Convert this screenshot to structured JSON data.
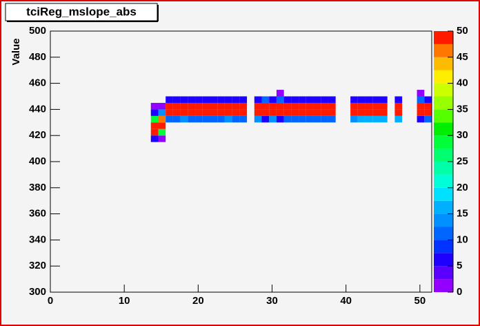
{
  "chart_data": {
    "type": "heatmap",
    "title": "tciReg_mslope_abs",
    "y_label": "Value",
    "xlim": [
      0,
      51.6
    ],
    "ylim": [
      300,
      500
    ],
    "zlim": [
      0,
      50
    ],
    "xticks": [
      0,
      10,
      20,
      30,
      40,
      50
    ],
    "yticks": [
      300,
      320,
      340,
      360,
      380,
      400,
      420,
      440,
      460,
      480,
      500
    ],
    "zticks": [
      0,
      5,
      10,
      15,
      20,
      25,
      30,
      35,
      40,
      45,
      50
    ],
    "xbins": [
      13.6,
      14.6,
      15.6,
      16.6,
      17.6,
      18.6,
      19.6,
      20.6,
      21.6,
      22.6,
      23.6,
      24.6,
      25.6,
      26.6,
      27.6,
      28.6,
      29.6,
      30.6,
      31.6,
      32.6,
      33.6,
      34.6,
      35.6,
      36.6,
      37.6,
      38.6,
      39.6,
      40.6,
      41.6,
      42.6,
      43.6,
      44.6,
      45.6,
      46.6,
      47.6,
      48.6,
      49.6,
      50.6,
      51.6
    ],
    "ybins": [
      415,
      420,
      425,
      430,
      435,
      440,
      445,
      450,
      455
    ],
    "z": [
      [
        6,
        2,
        null,
        null,
        null,
        null,
        null,
        null,
        null,
        null,
        null,
        null,
        null,
        null,
        null,
        null,
        null,
        null,
        null,
        null,
        null,
        null,
        null,
        null,
        null,
        null,
        null,
        null,
        null,
        null,
        null,
        null,
        null,
        null,
        null,
        null,
        null,
        null
      ],
      [
        48,
        28,
        null,
        null,
        null,
        null,
        null,
        null,
        null,
        null,
        null,
        null,
        null,
        null,
        null,
        null,
        null,
        null,
        null,
        null,
        null,
        null,
        null,
        null,
        null,
        null,
        null,
        null,
        null,
        null,
        null,
        null,
        null,
        null,
        null,
        null,
        null,
        null
      ],
      [
        48,
        48,
        null,
        null,
        null,
        null,
        null,
        null,
        null,
        null,
        null,
        null,
        null,
        null,
        null,
        null,
        null,
        null,
        null,
        null,
        null,
        null,
        null,
        null,
        null,
        null,
        null,
        null,
        null,
        null,
        null,
        null,
        null,
        null,
        null,
        null,
        null,
        null
      ],
      [
        29,
        45,
        10,
        10,
        13,
        11,
        11,
        11,
        11,
        11,
        13,
        11,
        11,
        null,
        14,
        6,
        14,
        6,
        12,
        12,
        12,
        12,
        12,
        12,
        12,
        null,
        null,
        13,
        15,
        15,
        15,
        15,
        null,
        17,
        null,
        null,
        6,
        12
      ],
      [
        7,
        14,
        49,
        49,
        49,
        49,
        49,
        49,
        49,
        49,
        49,
        49,
        49,
        null,
        49,
        49,
        49,
        49,
        49,
        49,
        49,
        49,
        49,
        49,
        49,
        null,
        null,
        49,
        49,
        49,
        49,
        49,
        null,
        49,
        null,
        null,
        49,
        49
      ],
      [
        1,
        1,
        49,
        49,
        49,
        49,
        49,
        49,
        49,
        49,
        49,
        49,
        49,
        null,
        49,
        49,
        49,
        49,
        49,
        49,
        49,
        49,
        49,
        49,
        49,
        null,
        null,
        49,
        49,
        49,
        49,
        49,
        null,
        49,
        null,
        null,
        49,
        49
      ],
      [
        null,
        null,
        6,
        6,
        6,
        6,
        6,
        6,
        6,
        6,
        6,
        6,
        6,
        null,
        6,
        11,
        6,
        11,
        6,
        6,
        6,
        6,
        6,
        6,
        6,
        null,
        null,
        6,
        6,
        6,
        6,
        6,
        null,
        6,
        null,
        null,
        11,
        6
      ],
      [
        null,
        null,
        null,
        null,
        null,
        null,
        null,
        null,
        null,
        null,
        null,
        null,
        null,
        null,
        null,
        null,
        null,
        1,
        null,
        null,
        null,
        null,
        null,
        null,
        null,
        null,
        null,
        null,
        null,
        null,
        null,
        null,
        null,
        null,
        null,
        null,
        1,
        null
      ]
    ],
    "palette": [
      "#9400ff",
      "#5a00ff",
      "#1e00ff",
      "#0033ff",
      "#0066ff",
      "#0090ff",
      "#00b0ff",
      "#00e0ff",
      "#00ffd8",
      "#00ffa8",
      "#00ff70",
      "#00ff38",
      "#00ee00",
      "#55ff00",
      "#99ff00",
      "#ccff00",
      "#ffee00",
      "#ffbb00",
      "#ff7700",
      "#ff1a00"
    ]
  }
}
